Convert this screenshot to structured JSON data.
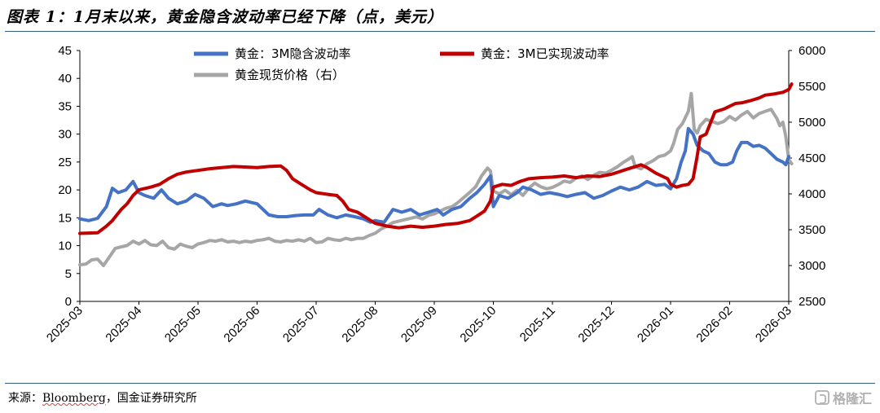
{
  "header": {
    "title": "图表 1：1月末以来，黄金隐含波动率已经下降（点，美元）"
  },
  "footer": {
    "source_label": "来源：",
    "source_brand": "Bloomberg",
    "source_rest": "，国金证券研究所",
    "watermark": "格隆汇"
  },
  "chart_data": {
    "type": "line",
    "x": [
      "2025-03",
      "2025-04",
      "2025-05",
      "2025-06",
      "2025-07",
      "2025-08",
      "2025-09",
      "2025-10",
      "2025-11",
      "2025-12",
      "2026-01",
      "2026-02",
      "2026-03"
    ],
    "left_axis": {
      "min": 0,
      "max": 45,
      "ticks": [
        0,
        5,
        10,
        15,
        20,
        25,
        30,
        35,
        40,
        45
      ]
    },
    "right_axis": {
      "min": 2500,
      "max": 6000,
      "ticks": [
        2500,
        3000,
        3500,
        4000,
        4500,
        5000,
        5500,
        6000
      ]
    },
    "legend": [
      "黄金：3M隐含波动率",
      "黄金：3M已实现波动率",
      "黄金现货价格（右）"
    ],
    "colors": {
      "implied": "#4472c4",
      "realized": "#c00000",
      "spot": "#a6a6a6"
    },
    "series": [
      {
        "name": "黄金：3M隐含波动率",
        "axis": "left",
        "color": "#4472c4",
        "points": [
          [
            0,
            14.8
          ],
          [
            0.15,
            14.5
          ],
          [
            0.3,
            14.9
          ],
          [
            0.45,
            17
          ],
          [
            0.55,
            20.3
          ],
          [
            0.65,
            19.5
          ],
          [
            0.78,
            20
          ],
          [
            0.9,
            21.5
          ],
          [
            1,
            19.5
          ],
          [
            1.1,
            19
          ],
          [
            1.25,
            18.5
          ],
          [
            1.38,
            20
          ],
          [
            1.5,
            18.5
          ],
          [
            1.65,
            17.5
          ],
          [
            1.8,
            18
          ],
          [
            1.95,
            19.2
          ],
          [
            2.1,
            18.5
          ],
          [
            2.25,
            17
          ],
          [
            2.4,
            17.5
          ],
          [
            2.5,
            17.2
          ],
          [
            2.65,
            17.5
          ],
          [
            2.8,
            18
          ],
          [
            3,
            17.5
          ],
          [
            3.1,
            16.5
          ],
          [
            3.2,
            15.5
          ],
          [
            3.35,
            15.2
          ],
          [
            3.5,
            15.2
          ],
          [
            3.65,
            15.4
          ],
          [
            3.8,
            15.5
          ],
          [
            3.95,
            15.5
          ],
          [
            4.05,
            16.5
          ],
          [
            4.2,
            15.5
          ],
          [
            4.35,
            15
          ],
          [
            4.5,
            15.5
          ],
          [
            4.65,
            15.2
          ],
          [
            4.8,
            14.8
          ],
          [
            4.92,
            14.2
          ],
          [
            5,
            14.5
          ],
          [
            5.15,
            14.2
          ],
          [
            5.3,
            16.5
          ],
          [
            5.45,
            16
          ],
          [
            5.6,
            16.5
          ],
          [
            5.75,
            15.5
          ],
          [
            5.9,
            16
          ],
          [
            6.05,
            16.5
          ],
          [
            6.15,
            15.5
          ],
          [
            6.3,
            16.5
          ],
          [
            6.45,
            17
          ],
          [
            6.6,
            18.5
          ],
          [
            6.72,
            19.5
          ],
          [
            6.85,
            21
          ],
          [
            6.95,
            22.5
          ],
          [
            7,
            17
          ],
          [
            7.1,
            19
          ],
          [
            7.25,
            18.5
          ],
          [
            7.4,
            19.5
          ],
          [
            7.5,
            20.5
          ],
          [
            7.65,
            20
          ],
          [
            7.8,
            19.2
          ],
          [
            7.95,
            19.5
          ],
          [
            8.1,
            19.2
          ],
          [
            8.25,
            18.8
          ],
          [
            8.4,
            19.2
          ],
          [
            8.55,
            19.5
          ],
          [
            8.7,
            18.5
          ],
          [
            8.85,
            19
          ],
          [
            9,
            19.8
          ],
          [
            9.15,
            20.5
          ],
          [
            9.3,
            20
          ],
          [
            9.45,
            20.5
          ],
          [
            9.6,
            21.5
          ],
          [
            9.75,
            20.8
          ],
          [
            9.9,
            21
          ],
          [
            10,
            20.2
          ],
          [
            10.1,
            22
          ],
          [
            10.18,
            25
          ],
          [
            10.25,
            27
          ],
          [
            10.3,
            31
          ],
          [
            10.38,
            30
          ],
          [
            10.45,
            28
          ],
          [
            10.55,
            27
          ],
          [
            10.65,
            26.5
          ],
          [
            10.75,
            25
          ],
          [
            10.85,
            24.5
          ],
          [
            10.95,
            24.5
          ],
          [
            11.05,
            25
          ],
          [
            11.12,
            27
          ],
          [
            11.2,
            28.5
          ],
          [
            11.3,
            28.5
          ],
          [
            11.4,
            27.8
          ],
          [
            11.5,
            28
          ],
          [
            11.6,
            27.5
          ],
          [
            11.7,
            26.5
          ],
          [
            11.8,
            25.5
          ],
          [
            11.9,
            25
          ],
          [
            11.95,
            24.5
          ],
          [
            12,
            26
          ]
        ]
      },
      {
        "name": "黄金：3M已实现波动率",
        "axis": "left",
        "color": "#c00000",
        "points": [
          [
            0,
            12.2
          ],
          [
            0.3,
            12.3
          ],
          [
            0.45,
            13.5
          ],
          [
            0.55,
            14.5
          ],
          [
            0.7,
            16.5
          ],
          [
            0.8,
            17.5
          ],
          [
            0.9,
            19
          ],
          [
            1,
            20
          ],
          [
            1.2,
            20.5
          ],
          [
            1.35,
            21
          ],
          [
            1.5,
            22
          ],
          [
            1.65,
            22.8
          ],
          [
            1.8,
            23.2
          ],
          [
            2,
            23.5
          ],
          [
            2.2,
            23.8
          ],
          [
            2.4,
            24
          ],
          [
            2.6,
            24.2
          ],
          [
            2.8,
            24.1
          ],
          [
            3,
            24
          ],
          [
            3.2,
            24.2
          ],
          [
            3.4,
            24.3
          ],
          [
            3.5,
            23.5
          ],
          [
            3.6,
            22
          ],
          [
            3.75,
            21
          ],
          [
            3.9,
            20
          ],
          [
            4,
            19.5
          ],
          [
            4.2,
            19.2
          ],
          [
            4.35,
            19
          ],
          [
            4.45,
            18
          ],
          [
            4.55,
            16.5
          ],
          [
            4.7,
            16
          ],
          [
            4.85,
            15
          ],
          [
            5,
            14
          ],
          [
            5.2,
            13.5
          ],
          [
            5.4,
            13.2
          ],
          [
            5.6,
            13.5
          ],
          [
            5.8,
            13.3
          ],
          [
            6,
            13.5
          ],
          [
            6.2,
            13.8
          ],
          [
            6.4,
            14
          ],
          [
            6.6,
            14.5
          ],
          [
            6.75,
            15.5
          ],
          [
            6.85,
            16.2
          ],
          [
            6.95,
            18
          ],
          [
            7,
            20.5
          ],
          [
            7.15,
            21
          ],
          [
            7.3,
            20.8
          ],
          [
            7.45,
            21.5
          ],
          [
            7.6,
            22
          ],
          [
            7.8,
            22.2
          ],
          [
            8,
            22.3
          ],
          [
            8.2,
            22.5
          ],
          [
            8.4,
            22.2
          ],
          [
            8.6,
            22.5
          ],
          [
            8.8,
            22.4
          ],
          [
            9,
            22.8
          ],
          [
            9.2,
            23.5
          ],
          [
            9.35,
            24
          ],
          [
            9.5,
            24.5
          ],
          [
            9.6,
            24
          ],
          [
            9.75,
            23
          ],
          [
            9.85,
            22.5
          ],
          [
            9.95,
            22
          ],
          [
            10,
            21
          ],
          [
            10.1,
            20.5
          ],
          [
            10.2,
            20.8
          ],
          [
            10.3,
            21
          ],
          [
            10.38,
            22
          ],
          [
            10.45,
            26
          ],
          [
            10.5,
            29.5
          ],
          [
            10.6,
            30
          ],
          [
            10.75,
            34
          ],
          [
            10.9,
            34.5
          ],
          [
            11,
            35
          ],
          [
            11.1,
            35.5
          ],
          [
            11.2,
            35.6
          ],
          [
            11.35,
            36
          ],
          [
            11.5,
            36.5
          ],
          [
            11.6,
            37
          ],
          [
            11.75,
            37.2
          ],
          [
            11.9,
            37.5
          ],
          [
            12,
            38
          ],
          [
            12.05,
            39
          ]
        ]
      },
      {
        "name": "黄金现货价格（右）",
        "axis": "right",
        "color": "#a6a6a6",
        "points": [
          [
            0,
            3010
          ],
          [
            0.1,
            3020
          ],
          [
            0.2,
            3080
          ],
          [
            0.3,
            3090
          ],
          [
            0.4,
            3000
          ],
          [
            0.5,
            3120
          ],
          [
            0.6,
            3240
          ],
          [
            0.7,
            3260
          ],
          [
            0.8,
            3280
          ],
          [
            0.9,
            3340
          ],
          [
            1,
            3300
          ],
          [
            1.1,
            3350
          ],
          [
            1.2,
            3290
          ],
          [
            1.3,
            3280
          ],
          [
            1.4,
            3340
          ],
          [
            1.5,
            3250
          ],
          [
            1.6,
            3230
          ],
          [
            1.7,
            3300
          ],
          [
            1.8,
            3270
          ],
          [
            1.9,
            3250
          ],
          [
            2,
            3300
          ],
          [
            2.1,
            3320
          ],
          [
            2.2,
            3350
          ],
          [
            2.3,
            3340
          ],
          [
            2.4,
            3360
          ],
          [
            2.5,
            3330
          ],
          [
            2.6,
            3340
          ],
          [
            2.7,
            3320
          ],
          [
            2.8,
            3340
          ],
          [
            2.9,
            3330
          ],
          [
            3,
            3350
          ],
          [
            3.1,
            3360
          ],
          [
            3.2,
            3380
          ],
          [
            3.3,
            3340
          ],
          [
            3.4,
            3330
          ],
          [
            3.5,
            3350
          ],
          [
            3.6,
            3340
          ],
          [
            3.7,
            3360
          ],
          [
            3.8,
            3340
          ],
          [
            3.9,
            3380
          ],
          [
            4,
            3320
          ],
          [
            4.1,
            3330
          ],
          [
            4.2,
            3380
          ],
          [
            4.3,
            3360
          ],
          [
            4.4,
            3350
          ],
          [
            4.5,
            3380
          ],
          [
            4.6,
            3360
          ],
          [
            4.7,
            3380
          ],
          [
            4.8,
            3380
          ],
          [
            4.9,
            3420
          ],
          [
            5,
            3450
          ],
          [
            5.1,
            3510
          ],
          [
            5.2,
            3550
          ],
          [
            5.3,
            3600
          ],
          [
            5.4,
            3620
          ],
          [
            5.5,
            3640
          ],
          [
            5.6,
            3660
          ],
          [
            5.7,
            3680
          ],
          [
            5.8,
            3650
          ],
          [
            5.9,
            3700
          ],
          [
            6,
            3720
          ],
          [
            6.1,
            3760
          ],
          [
            6.2,
            3800
          ],
          [
            6.3,
            3820
          ],
          [
            6.4,
            3880
          ],
          [
            6.5,
            3950
          ],
          [
            6.6,
            4020
          ],
          [
            6.7,
            4100
          ],
          [
            6.8,
            4250
          ],
          [
            6.9,
            4360
          ],
          [
            6.95,
            4320
          ],
          [
            7,
            4040
          ],
          [
            7.1,
            4000
          ],
          [
            7.2,
            4050
          ],
          [
            7.3,
            3990
          ],
          [
            7.4,
            4050
          ],
          [
            7.5,
            3980
          ],
          [
            7.6,
            4080
          ],
          [
            7.7,
            4150
          ],
          [
            7.8,
            4100
          ],
          [
            7.9,
            4070
          ],
          [
            8,
            4090
          ],
          [
            8.1,
            4130
          ],
          [
            8.2,
            4180
          ],
          [
            8.3,
            4160
          ],
          [
            8.4,
            4220
          ],
          [
            8.5,
            4250
          ],
          [
            8.6,
            4200
          ],
          [
            8.7,
            4260
          ],
          [
            8.8,
            4300
          ],
          [
            8.9,
            4290
          ],
          [
            9,
            4330
          ],
          [
            9.1,
            4380
          ],
          [
            9.2,
            4440
          ],
          [
            9.3,
            4490
          ],
          [
            9.35,
            4520
          ],
          [
            9.4,
            4380
          ],
          [
            9.5,
            4350
          ],
          [
            9.6,
            4420
          ],
          [
            9.7,
            4460
          ],
          [
            9.8,
            4520
          ],
          [
            9.9,
            4540
          ],
          [
            10,
            4600
          ],
          [
            10.05,
            4700
          ],
          [
            10.12,
            4900
          ],
          [
            10.2,
            4980
          ],
          [
            10.3,
            5150
          ],
          [
            10.35,
            5400
          ],
          [
            10.4,
            4900
          ],
          [
            10.45,
            4850
          ],
          [
            10.5,
            4950
          ],
          [
            10.6,
            5040
          ],
          [
            10.7,
            5010
          ],
          [
            10.8,
            4980
          ],
          [
            10.9,
            5010
          ],
          [
            11,
            5080
          ],
          [
            11.1,
            5030
          ],
          [
            11.2,
            5100
          ],
          [
            11.3,
            5150
          ],
          [
            11.4,
            5060
          ],
          [
            11.5,
            5120
          ],
          [
            11.6,
            5150
          ],
          [
            11.7,
            5180
          ],
          [
            11.8,
            5050
          ],
          [
            11.85,
            4950
          ],
          [
            11.9,
            5000
          ],
          [
            11.95,
            4800
          ],
          [
            12,
            4480
          ],
          [
            12.05,
            4420
          ]
        ]
      }
    ]
  }
}
